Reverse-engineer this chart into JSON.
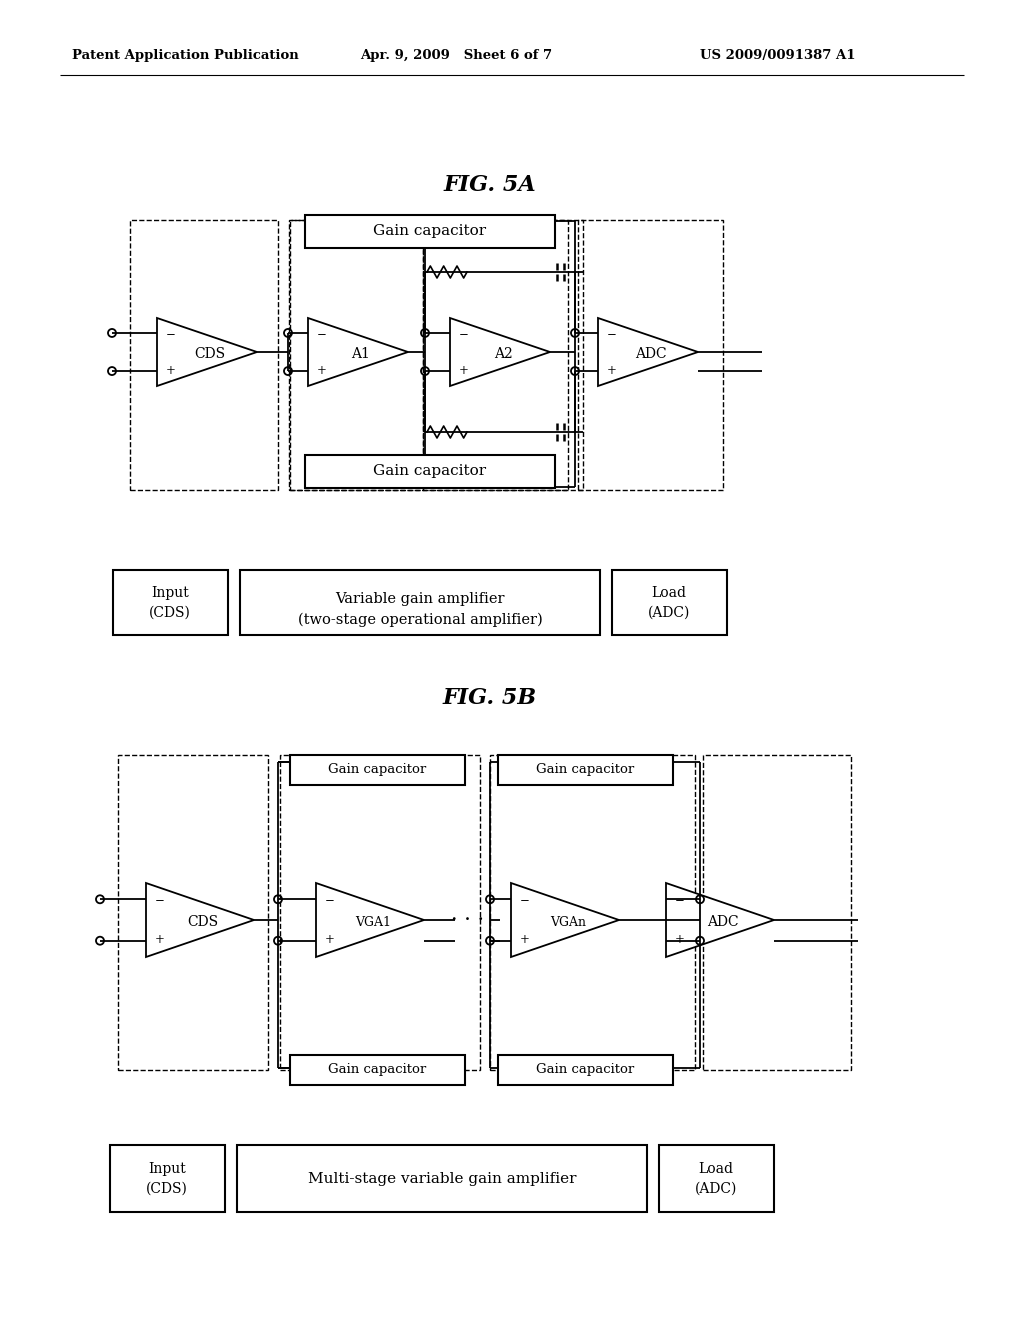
{
  "bg_color": "#ffffff",
  "header_left": "Patent Application Publication",
  "header_center": "Apr. 9, 2009   Sheet 6 of 7",
  "header_right": "US 2009/0091387 A1",
  "fig5a_title": "FIG. 5A",
  "fig5b_title": "FIG. 5B",
  "gain_cap_label": "Gain capacitor",
  "cds_label": "CDS",
  "a1_label": "A1",
  "a2_label": "A2",
  "adc_label": "ADC",
  "vga1_label": "VGA1",
  "vgan_label": "VGAn",
  "input_label": "Input\n(CDS)",
  "load_label": "Load\n(ADC)",
  "vga_desc_1": "Variable gain amplifier",
  "vga_desc_2": "(two-stage operational amplifier)",
  "multistage_desc": "Multi-stage variable gain amplifier",
  "ellipsis": "· · ·"
}
